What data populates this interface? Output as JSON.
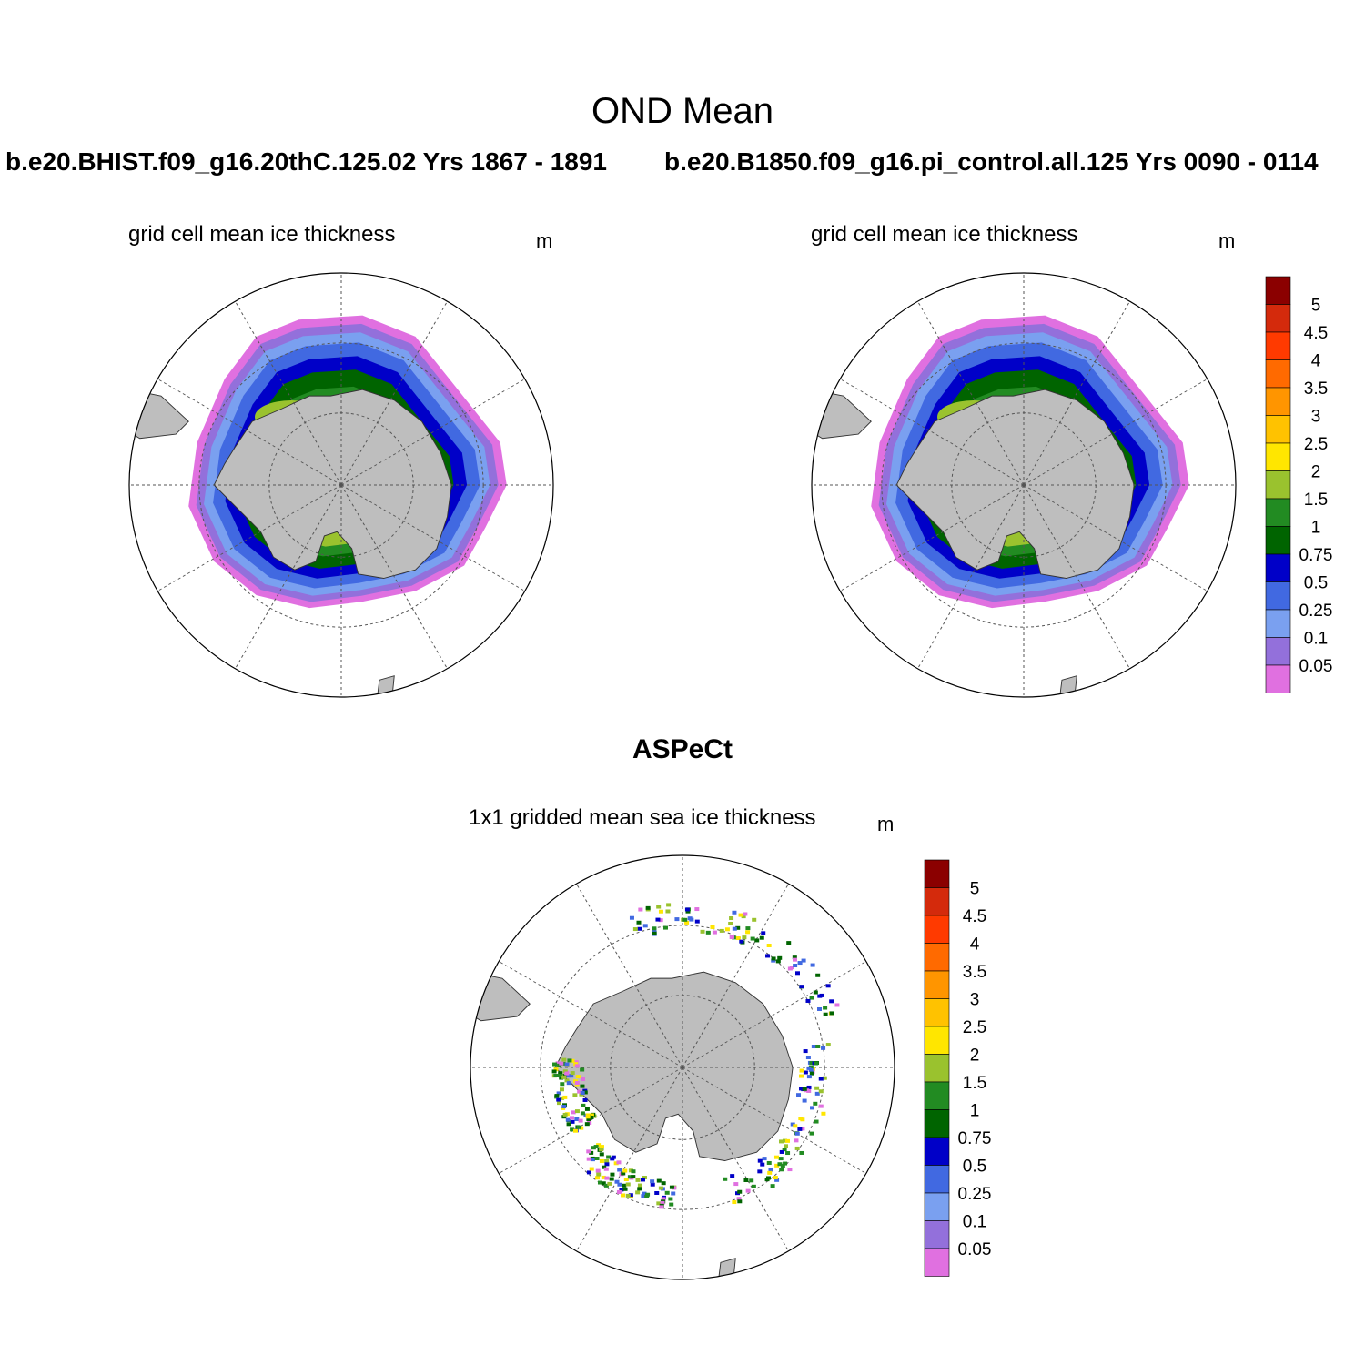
{
  "title": "OND Mean",
  "panels": {
    "left": {
      "run": "b.e20.BHIST.f09_g16.20thC.125.02  Yrs 1867 - 1891",
      "subtitle": "grid cell mean ice thickness",
      "units": "m"
    },
    "right": {
      "run": "b.e20.B1850.f09_g16.pi_control.all.125  Yrs 0090 - 0114",
      "subtitle": "grid cell mean ice thickness",
      "units": "m"
    },
    "obs": {
      "title": "ASPeCt",
      "subtitle": "1x1 gridded mean sea ice thickness",
      "units": "m"
    }
  },
  "colorbar": {
    "labels": [
      "5",
      "4.5",
      "4",
      "3.5",
      "3",
      "2.5",
      "2",
      "1.5",
      "1",
      "0.75",
      "0.5",
      "0.25",
      "0.1",
      "0.05"
    ],
    "colors_top_to_bottom": [
      "#8b0000",
      "#d42a0c",
      "#ff3a00",
      "#ff6a00",
      "#ff9500",
      "#ffc200",
      "#ffe600",
      "#9ac22e",
      "#228b22",
      "#006400",
      "#0000c8",
      "#4169e1",
      "#7aa0f0",
      "#9370db",
      "#e070e0"
    ]
  },
  "map": {
    "land_color": "#bebebe",
    "graticule": "dashed"
  }
}
